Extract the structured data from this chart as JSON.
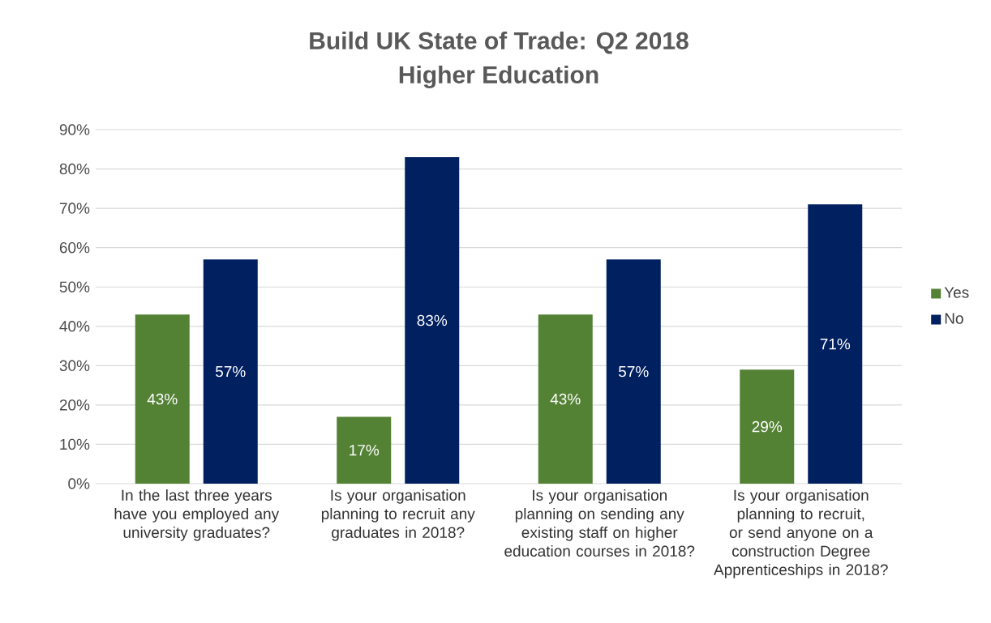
{
  "chart_data": {
    "type": "bar",
    "title": "Build UK State of Trade: Q2 2018",
    "subtitle": "Higher Education",
    "categories": [
      "In the last three years have you employed any university graduates?",
      "Is your organisation planning to recruit any graduates in 2018?",
      "Is your organisation planning on sending any existing staff on higher education courses in 2018?",
      "Is your organisation planning to recruit, or send anyone on a construction Degree Apprenticeships in 2018?"
    ],
    "series": [
      {
        "name": "Yes",
        "color": "#548235",
        "values": [
          43,
          17,
          43,
          29
        ],
        "value_labels": [
          "43%",
          "17%",
          "43%",
          "29%"
        ]
      },
      {
        "name": "No",
        "color": "#002060",
        "values": [
          57,
          83,
          57,
          71
        ],
        "value_labels": [
          "57%",
          "83%",
          "57%",
          "71%"
        ]
      }
    ],
    "ylim": [
      0,
      90
    ],
    "yticks": [
      {
        "value": 0,
        "label": "0%"
      },
      {
        "value": 10,
        "label": "10%"
      },
      {
        "value": 20,
        "label": "20%"
      },
      {
        "value": 30,
        "label": "30%"
      },
      {
        "value": 40,
        "label": "40%"
      },
      {
        "value": 50,
        "label": "50%"
      },
      {
        "value": 60,
        "label": "60%"
      },
      {
        "value": 70,
        "label": "70%"
      },
      {
        "value": 80,
        "label": "80%"
      },
      {
        "value": 90,
        "label": "90%"
      }
    ],
    "grid": "y",
    "legend": "right"
  }
}
